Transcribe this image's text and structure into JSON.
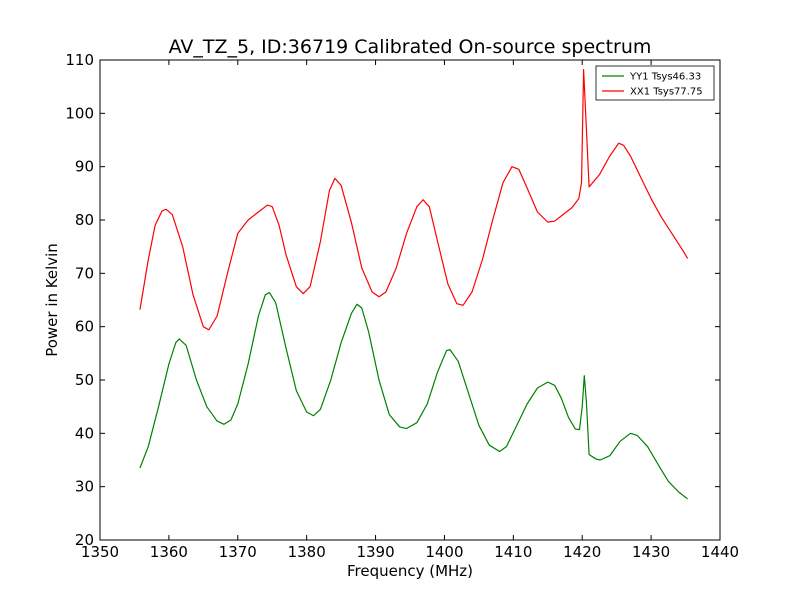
{
  "chart_data": {
    "type": "line",
    "title": "AV_TZ_5, ID:36719 Calibrated On-source spectrum",
    "xlabel": "Frequency (MHz)",
    "ylabel": "Power in Kelvin",
    "xlim": [
      1350,
      1440
    ],
    "ylim": [
      20,
      110
    ],
    "xticks": [
      1350,
      1360,
      1370,
      1380,
      1390,
      1400,
      1410,
      1420,
      1430,
      1440
    ],
    "yticks": [
      20,
      30,
      40,
      50,
      60,
      70,
      80,
      90,
      100,
      110
    ],
    "grid": false,
    "legend": "top-right",
    "series": [
      {
        "name": "YY1 Tsys46.33",
        "color": "#008000",
        "points": [
          [
            1355.8,
            33.5
          ],
          [
            1357.0,
            37.5
          ],
          [
            1358.5,
            45.0
          ],
          [
            1360.0,
            53.0
          ],
          [
            1361.0,
            57.0
          ],
          [
            1361.5,
            57.7
          ],
          [
            1362.5,
            56.5
          ],
          [
            1364.0,
            50.0
          ],
          [
            1365.5,
            45.0
          ],
          [
            1367.0,
            42.3
          ],
          [
            1368.0,
            41.7
          ],
          [
            1369.0,
            42.5
          ],
          [
            1370.0,
            45.5
          ],
          [
            1371.5,
            53.0
          ],
          [
            1373.0,
            62.0
          ],
          [
            1374.0,
            66.0
          ],
          [
            1374.6,
            66.4
          ],
          [
            1375.5,
            64.5
          ],
          [
            1377.0,
            56.0
          ],
          [
            1378.5,
            48.0
          ],
          [
            1380.0,
            44.0
          ],
          [
            1381.0,
            43.3
          ],
          [
            1382.0,
            44.5
          ],
          [
            1383.5,
            50.0
          ],
          [
            1385.0,
            57.0
          ],
          [
            1386.5,
            62.5
          ],
          [
            1387.3,
            64.2
          ],
          [
            1388.0,
            63.5
          ],
          [
            1389.0,
            59.0
          ],
          [
            1390.5,
            50.0
          ],
          [
            1392.0,
            43.5
          ],
          [
            1393.5,
            41.2
          ],
          [
            1394.5,
            40.9
          ],
          [
            1396.0,
            42.0
          ],
          [
            1397.5,
            45.5
          ],
          [
            1399.0,
            51.5
          ],
          [
            1400.3,
            55.5
          ],
          [
            1400.8,
            55.7
          ],
          [
            1402.0,
            53.5
          ],
          [
            1403.5,
            47.5
          ],
          [
            1405.0,
            41.5
          ],
          [
            1406.5,
            37.8
          ],
          [
            1408.0,
            36.6
          ],
          [
            1409.0,
            37.5
          ],
          [
            1410.5,
            41.5
          ],
          [
            1412.0,
            45.5
          ],
          [
            1413.5,
            48.5
          ],
          [
            1415.0,
            49.6
          ],
          [
            1416.0,
            49.0
          ],
          [
            1417.0,
            46.5
          ],
          [
            1418.0,
            43.0
          ],
          [
            1419.0,
            40.8
          ],
          [
            1419.6,
            40.7
          ],
          [
            1420.0,
            45.0
          ],
          [
            1420.3,
            50.8
          ],
          [
            1420.6,
            46.0
          ],
          [
            1421.0,
            36.0
          ],
          [
            1422.0,
            35.2
          ],
          [
            1422.6,
            35.0
          ],
          [
            1424.0,
            35.8
          ],
          [
            1425.5,
            38.5
          ],
          [
            1427.0,
            40.0
          ],
          [
            1428.0,
            39.6
          ],
          [
            1429.5,
            37.5
          ],
          [
            1431.0,
            34.2
          ],
          [
            1432.5,
            31.0
          ],
          [
            1434.0,
            29.0
          ],
          [
            1435.3,
            27.7
          ]
        ]
      },
      {
        "name": "XX1 Tsys77.75",
        "color": "#ff0000",
        "points": [
          [
            1355.8,
            63.2
          ],
          [
            1357.0,
            72.5
          ],
          [
            1358.0,
            79.0
          ],
          [
            1359.0,
            81.7
          ],
          [
            1359.6,
            82.0
          ],
          [
            1360.5,
            81.0
          ],
          [
            1362.0,
            75.0
          ],
          [
            1363.5,
            66.0
          ],
          [
            1365.0,
            60.0
          ],
          [
            1365.8,
            59.4
          ],
          [
            1367.0,
            62.0
          ],
          [
            1368.5,
            70.0
          ],
          [
            1370.0,
            77.5
          ],
          [
            1371.5,
            80.0
          ],
          [
            1373.0,
            81.5
          ],
          [
            1374.3,
            82.8
          ],
          [
            1375.0,
            82.5
          ],
          [
            1376.0,
            79.0
          ],
          [
            1377.0,
            73.5
          ],
          [
            1378.5,
            67.5
          ],
          [
            1379.5,
            66.2
          ],
          [
            1380.5,
            67.5
          ],
          [
            1382.0,
            76.0
          ],
          [
            1383.3,
            85.5
          ],
          [
            1384.1,
            87.8
          ],
          [
            1385.0,
            86.5
          ],
          [
            1386.5,
            79.5
          ],
          [
            1388.0,
            71.0
          ],
          [
            1389.5,
            66.5
          ],
          [
            1390.5,
            65.6
          ],
          [
            1391.5,
            66.5
          ],
          [
            1393.0,
            71.0
          ],
          [
            1394.5,
            77.5
          ],
          [
            1396.0,
            82.5
          ],
          [
            1396.9,
            83.8
          ],
          [
            1397.8,
            82.5
          ],
          [
            1399.0,
            76.0
          ],
          [
            1400.5,
            68.0
          ],
          [
            1401.8,
            64.3
          ],
          [
            1402.7,
            64.0
          ],
          [
            1404.0,
            66.5
          ],
          [
            1405.5,
            72.5
          ],
          [
            1407.0,
            80.0
          ],
          [
            1408.5,
            87.0
          ],
          [
            1409.8,
            90.0
          ],
          [
            1410.8,
            89.5
          ],
          [
            1412.0,
            86.0
          ],
          [
            1413.5,
            81.5
          ],
          [
            1415.0,
            79.6
          ],
          [
            1416.0,
            79.8
          ],
          [
            1417.0,
            80.8
          ],
          [
            1418.5,
            82.3
          ],
          [
            1419.5,
            84.0
          ],
          [
            1419.9,
            87.0
          ],
          [
            1420.2,
            108.2
          ],
          [
            1420.5,
            100.0
          ],
          [
            1421.0,
            86.2
          ],
          [
            1422.5,
            88.5
          ],
          [
            1424.0,
            92.0
          ],
          [
            1425.3,
            94.4
          ],
          [
            1426.0,
            94.0
          ],
          [
            1427.0,
            92.0
          ],
          [
            1428.5,
            88.0
          ],
          [
            1430.0,
            84.0
          ],
          [
            1431.5,
            80.5
          ],
          [
            1433.0,
            77.5
          ],
          [
            1434.5,
            74.5
          ],
          [
            1435.3,
            72.8
          ]
        ]
      }
    ]
  }
}
